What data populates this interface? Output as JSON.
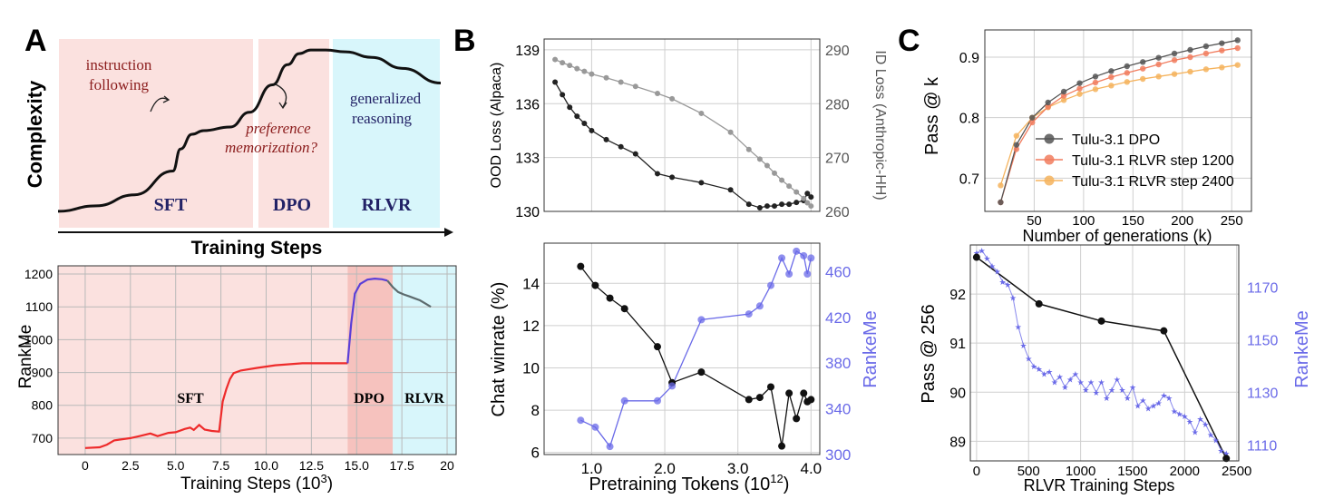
{
  "panel_letters": {
    "a": "A",
    "b": "B",
    "c": "C"
  },
  "colors": {
    "sft_bg": "#fbe1df",
    "dpo_bg": "#f6c2be",
    "rlvr_bg": "#d8f6fb",
    "sft_line": "#ee2b2b",
    "dpo_line": "#5b3fd8",
    "rlvr_line": "#5d6b6e",
    "dark": "#222222",
    "gray": "#999999",
    "blue": "#6a6ae8",
    "orange_light": "#f5b35d",
    "orange": "#f17c5e",
    "deep_red": "#8b1c1c",
    "navy": "#222266"
  },
  "chart_data": [
    {
      "id": "A-top",
      "type": "line",
      "title": "",
      "ylabel": "Complexity",
      "xlabel": "Training Steps",
      "regions": [
        "SFT",
        "DPO",
        "RLVR"
      ],
      "annotations": {
        "instruction": [
          "instruction",
          "following"
        ],
        "preference": [
          "preference",
          "memorization?"
        ],
        "generalized": [
          "generalized",
          "reasoning"
        ]
      },
      "curve": {
        "x": [
          0,
          10,
          20,
          30,
          32,
          35,
          38,
          45,
          50,
          56,
          60,
          63,
          66,
          70,
          75,
          82,
          90,
          100
        ],
        "y": [
          0.06,
          0.09,
          0.15,
          0.28,
          0.4,
          0.48,
          0.5,
          0.52,
          0.6,
          0.75,
          0.86,
          0.92,
          0.94,
          0.94,
          0.93,
          0.9,
          0.84,
          0.76
        ]
      }
    },
    {
      "id": "A-bottom",
      "type": "line",
      "xlabel": "Training  Steps (10",
      "xlabel_sup": "3",
      "xlabel_end": ")",
      "ylabel": "RankMe",
      "xlim": [
        -1.5,
        20.5
      ],
      "ylim": [
        650,
        1225
      ],
      "xticks": [
        0,
        2.5,
        5,
        7.5,
        10,
        12.5,
        15,
        17.5,
        20
      ],
      "xtick_labels": [
        "0",
        "2.5",
        "5.0",
        "7.5",
        "10.0",
        "12.5",
        "15.0",
        "17.5",
        "20"
      ],
      "yticks": [
        700,
        800,
        900,
        1000,
        1100,
        1200
      ],
      "regions": {
        "sft": [
          -1.5,
          14.5
        ],
        "dpo": [
          14.5,
          17.0
        ],
        "rlvr": [
          17.0,
          20.5
        ]
      },
      "region_labels": [
        "SFT",
        "DPO",
        "RLVR"
      ],
      "series": [
        {
          "name": "SFT",
          "x": [
            0,
            0.8,
            1.2,
            1.6,
            2.5,
            3.0,
            3.6,
            4.0,
            4.6,
            5.0,
            5.5,
            5.8,
            6.0,
            6.3,
            6.6,
            7.0,
            7.4,
            7.6,
            7.8,
            8.0,
            8.2,
            8.6,
            9.5,
            10.5,
            12,
            13,
            14.5
          ],
          "y": [
            670,
            672,
            680,
            693,
            700,
            706,
            714,
            706,
            716,
            718,
            728,
            732,
            725,
            740,
            726,
            722,
            720,
            812,
            850,
            880,
            898,
            906,
            914,
            922,
            928,
            928,
            928
          ]
        },
        {
          "name": "DPO",
          "x": [
            14.5,
            14.7,
            14.9,
            15.2,
            15.6,
            16.0,
            16.4,
            16.7
          ],
          "y": [
            928,
            1050,
            1140,
            1170,
            1183,
            1186,
            1184,
            1180
          ]
        },
        {
          "name": "RLVR",
          "x": [
            16.7,
            17.0,
            17.3,
            17.6,
            17.9,
            18.2,
            18.5,
            18.8,
            19.1
          ],
          "y": [
            1180,
            1160,
            1145,
            1138,
            1132,
            1126,
            1120,
            1110,
            1100
          ]
        }
      ]
    },
    {
      "id": "B-top",
      "type": "line",
      "ylabel": "OOD Loss (Alpaca)",
      "ylabel_right": "ID Loss (Anthropic-HH)",
      "xlim": [
        0.35,
        4.12
      ],
      "ylim": [
        130,
        139.6
      ],
      "ylim_right": [
        260,
        292
      ],
      "yticks": [
        130,
        133,
        136,
        139
      ],
      "yticks_right": [
        260,
        270,
        280,
        290
      ],
      "series": [
        {
          "name": "OOD Loss (Alpaca)",
          "axis": "left",
          "x": [
            0.5,
            0.6,
            0.7,
            0.8,
            0.9,
            1.0,
            1.2,
            1.4,
            1.6,
            1.9,
            2.1,
            2.5,
            2.9,
            3.15,
            3.3,
            3.4,
            3.5,
            3.6,
            3.7,
            3.8,
            3.9,
            3.95,
            4.0
          ],
          "y": [
            137.2,
            136.5,
            135.8,
            135.3,
            134.9,
            134.5,
            134.0,
            133.6,
            133.2,
            132.1,
            131.9,
            131.6,
            131.2,
            130.4,
            130.2,
            130.3,
            130.3,
            130.4,
            130.4,
            130.5,
            130.6,
            131.0,
            130.8
          ]
        },
        {
          "name": "ID Loss (Anthropic-HH)",
          "axis": "right",
          "x": [
            0.5,
            0.6,
            0.7,
            0.8,
            0.9,
            1.0,
            1.2,
            1.4,
            1.6,
            1.9,
            2.1,
            2.5,
            2.9,
            3.15,
            3.3,
            3.4,
            3.5,
            3.6,
            3.7,
            3.8,
            3.9,
            3.95,
            4.0
          ],
          "y": [
            288.2,
            287.6,
            287.1,
            286.5,
            286.0,
            285.5,
            284.8,
            284.0,
            283.2,
            281.9,
            280.9,
            278.2,
            274.7,
            271.5,
            269.7,
            268.5,
            267.1,
            265.8,
            264.7,
            263.6,
            262.4,
            261.6,
            261.0
          ]
        }
      ]
    },
    {
      "id": "B-bottom",
      "type": "line",
      "xlabel": "Pretraining  Tokens (10",
      "xlabel_sup": "12",
      "xlabel_end": ")",
      "ylabel": "Chat winrate (%)",
      "ylabel_right": "RankeMe",
      "xlim": [
        0.35,
        4.12
      ],
      "ylim": [
        5.9,
        15.9
      ],
      "ylim_right": [
        300,
        485
      ],
      "xticks": [
        1.0,
        2.0,
        3.0,
        4.0
      ],
      "xtick_labels": [
        "1.0",
        "2.0",
        "3.0",
        "4.0"
      ],
      "yticks": [
        6,
        8,
        10,
        12,
        14
      ],
      "yticks_right": [
        300,
        340,
        380,
        420,
        460
      ],
      "series": [
        {
          "name": "Chat winrate",
          "axis": "left",
          "x": [
            0.85,
            1.05,
            1.25,
            1.45,
            1.9,
            2.1,
            2.5,
            3.15,
            3.3,
            3.45,
            3.6,
            3.7,
            3.8,
            3.9,
            3.95,
            4.0
          ],
          "y": [
            14.8,
            13.9,
            13.3,
            12.8,
            11.0,
            9.3,
            9.8,
            8.5,
            8.6,
            9.1,
            6.3,
            8.8,
            7.6,
            8.8,
            8.4,
            8.5
          ]
        },
        {
          "name": "RankeMe",
          "axis": "right",
          "x": [
            0.85,
            1.05,
            1.25,
            1.45,
            1.9,
            2.1,
            2.5,
            3.15,
            3.3,
            3.45,
            3.6,
            3.7,
            3.8,
            3.9,
            3.95,
            4.0
          ],
          "y": [
            330,
            324,
            307,
            347,
            347,
            360,
            418,
            423,
            430,
            448,
            472,
            458,
            478,
            474,
            458,
            472
          ]
        }
      ]
    },
    {
      "id": "C-top",
      "type": "line",
      "xlabel": "Number of generations (k)",
      "ylabel": "Pass @ k",
      "xlim": [
        0,
        270
      ],
      "ylim": [
        0.645,
        0.945
      ],
      "xticks": [
        50,
        100,
        150,
        200,
        250
      ],
      "yticks": [
        0.7,
        0.8,
        0.9
      ],
      "x": [
        16,
        32,
        48,
        64,
        80,
        96,
        112,
        128,
        144,
        160,
        176,
        192,
        208,
        224,
        240,
        256
      ],
      "series": [
        {
          "name": "Tulu-3.1 DPO",
          "y": [
            0.66,
            0.755,
            0.8,
            0.825,
            0.843,
            0.857,
            0.868,
            0.877,
            0.885,
            0.892,
            0.899,
            0.906,
            0.912,
            0.918,
            0.923,
            0.928
          ]
        },
        {
          "name": "Tulu-3.1 RLVR step 1200",
          "y": [
            0.66,
            0.748,
            0.792,
            0.818,
            0.836,
            0.848,
            0.858,
            0.867,
            0.874,
            0.881,
            0.888,
            0.895,
            0.9,
            0.906,
            0.911,
            0.915
          ]
        },
        {
          "name": "Tulu-3.1 RLVR step 2400",
          "y": [
            0.688,
            0.77,
            0.8,
            0.817,
            0.829,
            0.839,
            0.847,
            0.853,
            0.859,
            0.864,
            0.868,
            0.872,
            0.876,
            0.88,
            0.883,
            0.887
          ]
        }
      ]
    },
    {
      "id": "C-bottom",
      "type": "line",
      "xlabel": "RLVR Training Steps",
      "ylabel": "Pass @ 256",
      "ylabel_right": "RankeMe",
      "xlim": [
        -60,
        2520
      ],
      "ylim": [
        88.6,
        93.0
      ],
      "ylim_right": [
        1104,
        1186
      ],
      "xticks": [
        0,
        500,
        1000,
        1500,
        2000,
        2500
      ],
      "yticks": [
        89,
        90,
        91,
        92
      ],
      "yticks_right": [
        1110,
        1130,
        1150,
        1170
      ],
      "series": [
        {
          "name": "Pass @ 256",
          "axis": "left",
          "x": [
            0,
            600,
            1200,
            1800,
            2400
          ],
          "y": [
            92.75,
            91.8,
            91.45,
            91.25,
            88.65
          ]
        },
        {
          "name": "RankeMe",
          "axis": "right",
          "x": [
            0,
            50,
            100,
            150,
            200,
            250,
            300,
            350,
            400,
            450,
            500,
            550,
            600,
            650,
            700,
            750,
            800,
            850,
            900,
            950,
            1000,
            1050,
            1100,
            1150,
            1200,
            1250,
            1300,
            1350,
            1400,
            1450,
            1500,
            1550,
            1600,
            1650,
            1700,
            1750,
            1800,
            1850,
            1900,
            1950,
            2000,
            2050,
            2100,
            2150,
            2200,
            2250,
            2300,
            2350,
            2400
          ],
          "y": [
            1183,
            1184,
            1181,
            1178,
            1176,
            1172,
            1171,
            1166,
            1155,
            1148,
            1143,
            1140,
            1139,
            1137,
            1138,
            1134,
            1136,
            1132,
            1135,
            1137,
            1134,
            1131,
            1134,
            1130,
            1134,
            1128,
            1131,
            1135,
            1131,
            1128,
            1132,
            1125,
            1127,
            1124,
            1125,
            1126,
            1129,
            1128,
            1123,
            1122,
            1121,
            1119,
            1115,
            1120,
            1118,
            1114,
            1112,
            1108,
            1107
          ]
        }
      ]
    }
  ],
  "legend_c_top": [
    "Tulu-3.1 DPO",
    "Tulu-3.1 RLVR step 1200",
    "Tulu-3.1 RLVR step 2400"
  ]
}
